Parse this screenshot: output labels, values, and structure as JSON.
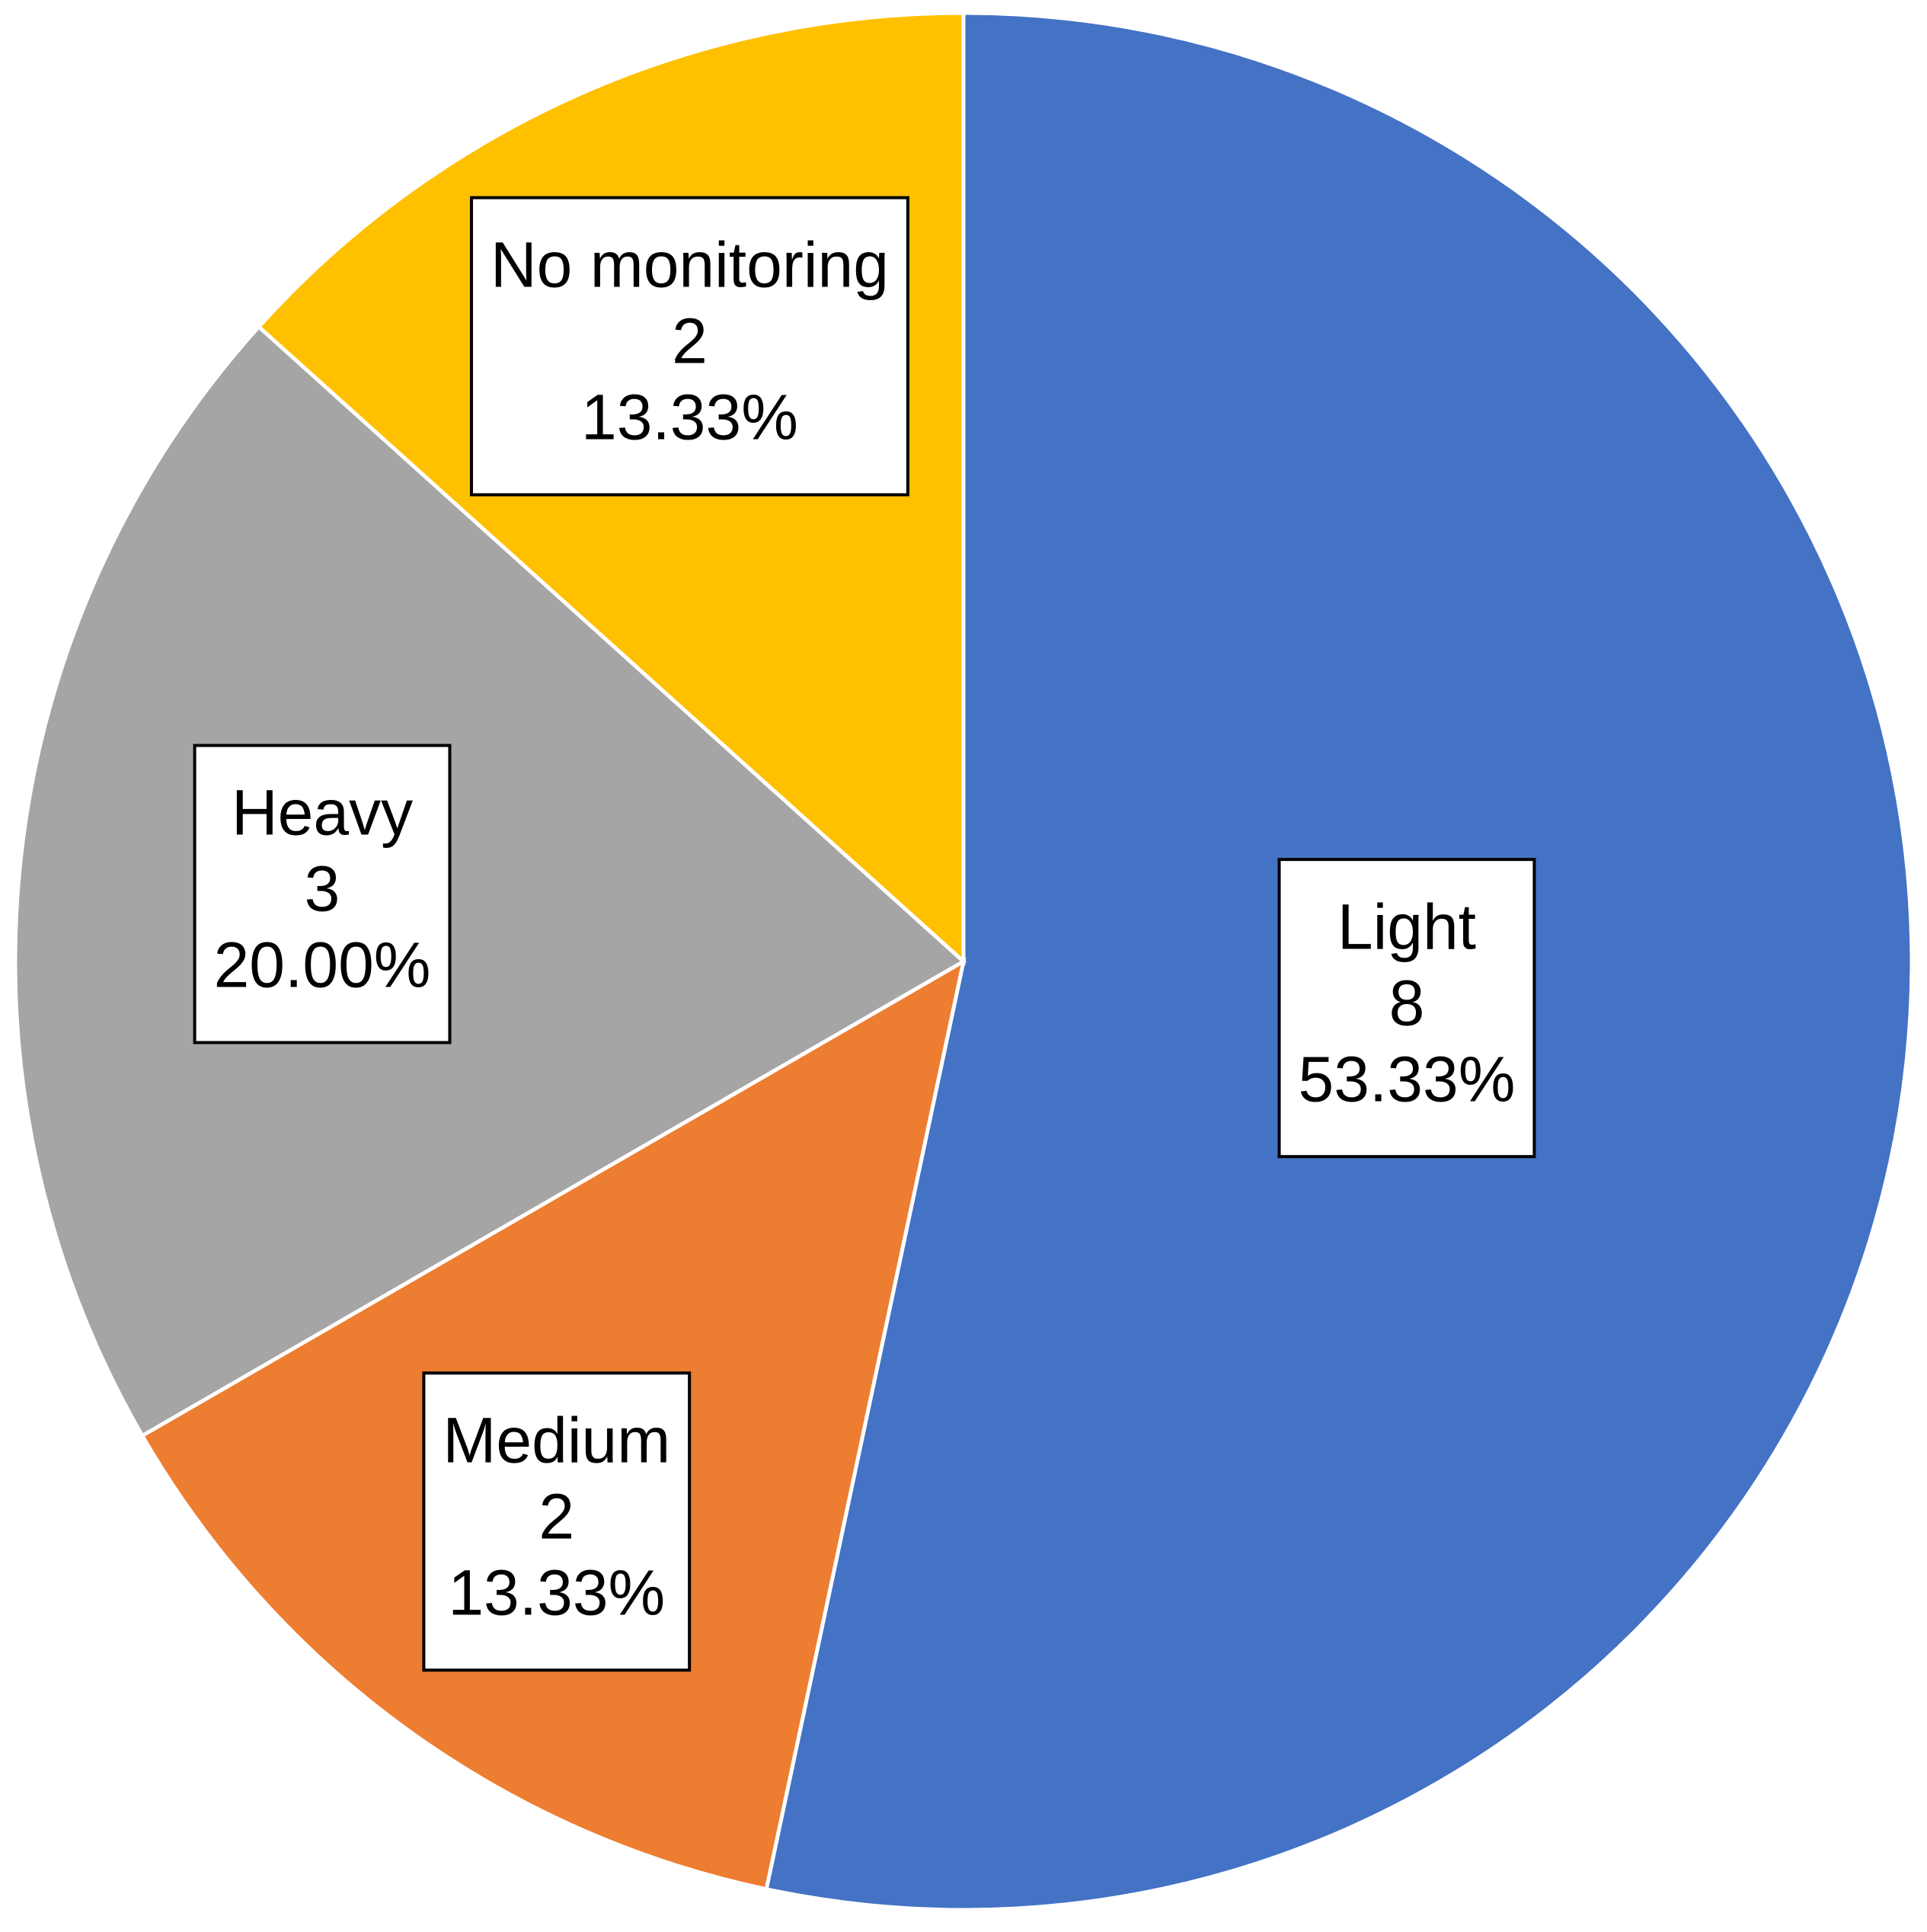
{
  "chart_data": {
    "type": "pie",
    "categories": [
      "Light",
      "Medium",
      "Heavy",
      "No monitoring"
    ],
    "values": [
      8,
      2,
      3,
      2
    ],
    "percentages": [
      53.33,
      13.33,
      20.0,
      13.33
    ],
    "percentage_labels": [
      "53.33%",
      "13.33%",
      "20.00%",
      "13.33%"
    ],
    "colors": [
      "#4472c4",
      "#ed7d31",
      "#a5a5a5",
      "#ffc000"
    ]
  }
}
